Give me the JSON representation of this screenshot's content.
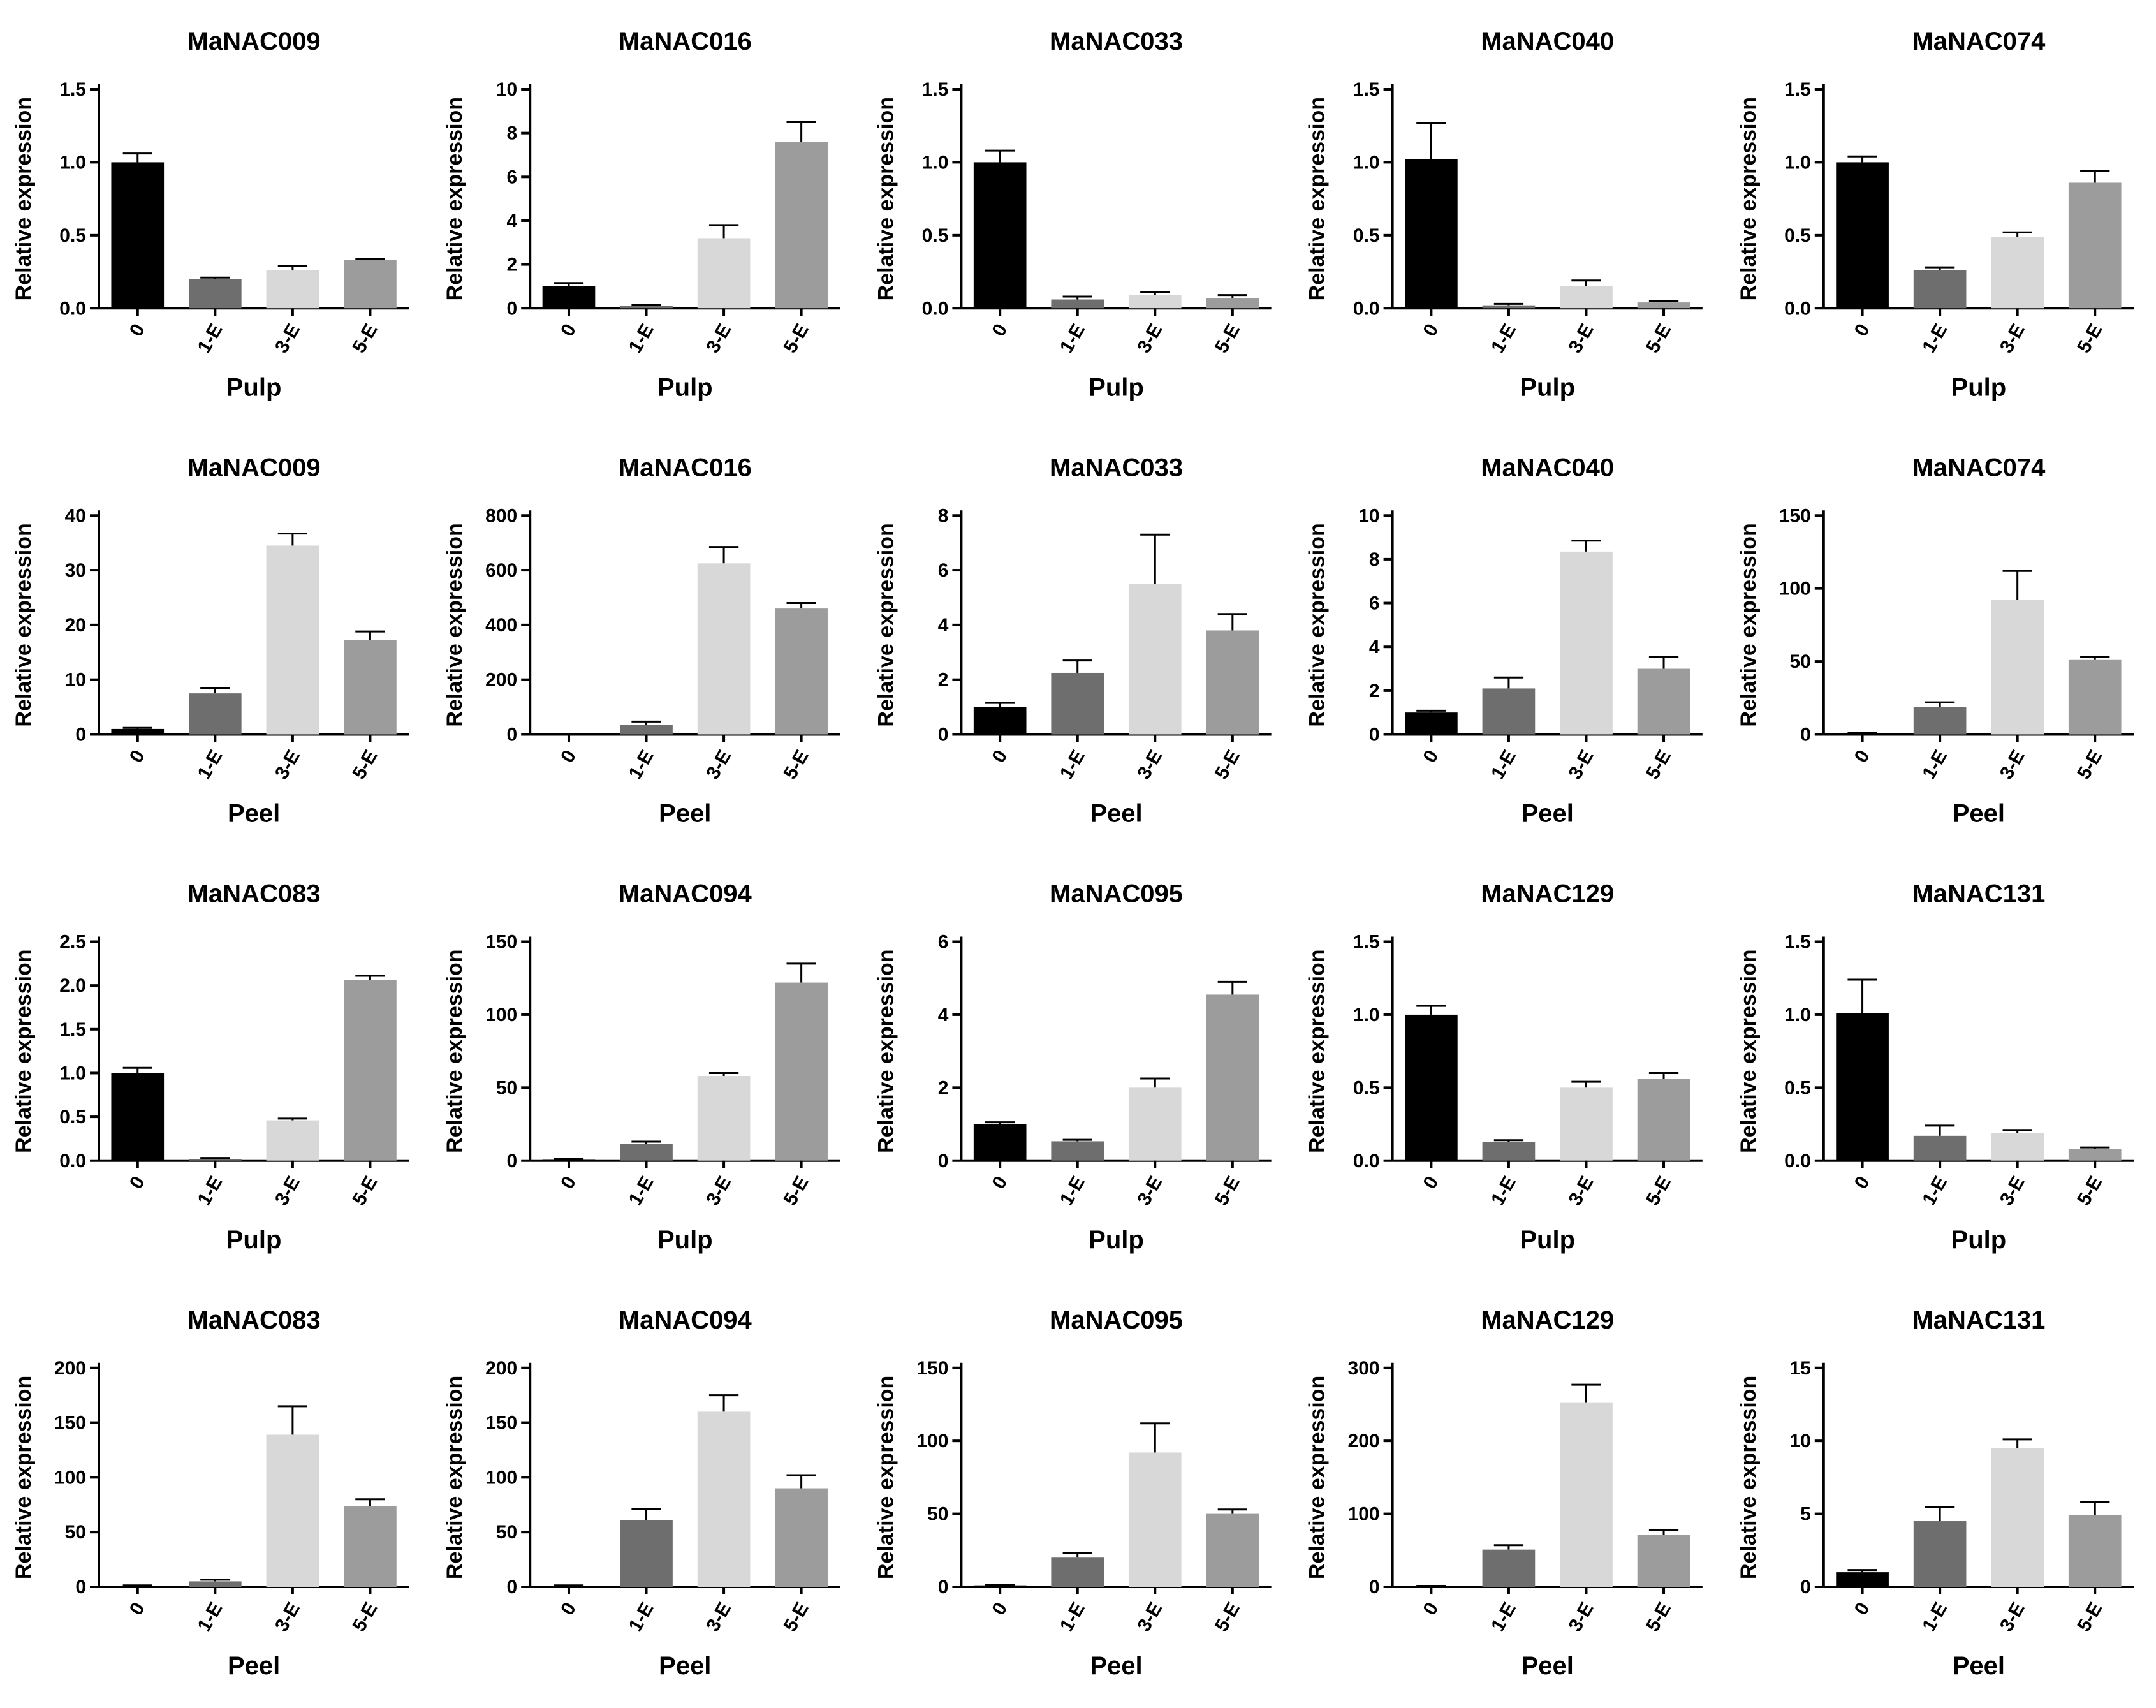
{
  "colors": {
    "0": "#000000",
    "1-E": "#6e6e6e",
    "3-E": "#d8d8d8",
    "5-E": "#9c9c9c"
  },
  "chart_data": [
    {
      "type": "bar",
      "title": "MaNAC009",
      "xlabel": "Pulp",
      "ylabel": "Relative expression",
      "categories": [
        "0",
        "1-E",
        "3-E",
        "5-E"
      ],
      "values": [
        1.0,
        0.2,
        0.26,
        0.33
      ],
      "errors": [
        0.06,
        0.01,
        0.03,
        0.01
      ],
      "ylim": [
        0,
        1.5
      ],
      "yticks": [
        "0.0",
        "0.5",
        "1.0",
        "1.5"
      ]
    },
    {
      "type": "bar",
      "title": "MaNAC016",
      "xlabel": "Pulp",
      "ylabel": "Relative expression",
      "categories": [
        "0",
        "1-E",
        "3-E",
        "5-E"
      ],
      "values": [
        1.0,
        0.1,
        3.2,
        7.6
      ],
      "errors": [
        0.15,
        0.05,
        0.6,
        0.9
      ],
      "ylim": [
        0,
        10
      ],
      "yticks": [
        "0",
        "2",
        "4",
        "6",
        "8",
        "10"
      ]
    },
    {
      "type": "bar",
      "title": "MaNAC033",
      "xlabel": "Pulp",
      "ylabel": "Relative expression",
      "categories": [
        "0",
        "1-E",
        "3-E",
        "5-E"
      ],
      "values": [
        1.0,
        0.06,
        0.09,
        0.07
      ],
      "errors": [
        0.08,
        0.02,
        0.02,
        0.02
      ],
      "ylim": [
        0,
        1.5
      ],
      "yticks": [
        "0.0",
        "0.5",
        "1.0",
        "1.5"
      ]
    },
    {
      "type": "bar",
      "title": "MaNAC040",
      "xlabel": "Pulp",
      "ylabel": "Relative expression",
      "categories": [
        "0",
        "1-E",
        "3-E",
        "5-E"
      ],
      "values": [
        1.02,
        0.02,
        0.15,
        0.04
      ],
      "errors": [
        0.25,
        0.01,
        0.04,
        0.01
      ],
      "ylim": [
        0,
        1.5
      ],
      "yticks": [
        "0.0",
        "0.5",
        "1.0",
        "1.5"
      ]
    },
    {
      "type": "bar",
      "title": "MaNAC074",
      "xlabel": "Pulp",
      "ylabel": "Relative expression",
      "categories": [
        "0",
        "1-E",
        "3-E",
        "5-E"
      ],
      "values": [
        1.0,
        0.26,
        0.49,
        0.86
      ],
      "errors": [
        0.04,
        0.02,
        0.03,
        0.08
      ],
      "ylim": [
        0,
        1.5
      ],
      "yticks": [
        "0.0",
        "0.5",
        "1.0",
        "1.5"
      ]
    },
    {
      "type": "bar",
      "title": "MaNAC009",
      "xlabel": "Peel",
      "ylabel": "Relative expression",
      "categories": [
        "0",
        "1-E",
        "3-E",
        "5-E"
      ],
      "values": [
        1.0,
        7.5,
        34.5,
        17.2
      ],
      "errors": [
        0.2,
        1.0,
        2.2,
        1.6
      ],
      "ylim": [
        0,
        40
      ],
      "yticks": [
        "0",
        "10",
        "20",
        "30",
        "40"
      ]
    },
    {
      "type": "bar",
      "title": "MaNAC016",
      "xlabel": "Peel",
      "ylabel": "Relative expression",
      "categories": [
        "0",
        "1-E",
        "3-E",
        "5-E"
      ],
      "values": [
        1.0,
        35,
        625,
        460
      ],
      "errors": [
        0.5,
        12,
        60,
        20
      ],
      "ylim": [
        0,
        800
      ],
      "yticks": [
        "0",
        "200",
        "400",
        "600",
        "800"
      ]
    },
    {
      "type": "bar",
      "title": "MaNAC033",
      "xlabel": "Peel",
      "ylabel": "Relative expression",
      "categories": [
        "0",
        "1-E",
        "3-E",
        "5-E"
      ],
      "values": [
        1.0,
        2.25,
        5.5,
        3.8
      ],
      "errors": [
        0.15,
        0.45,
        1.8,
        0.6
      ],
      "ylim": [
        0,
        8
      ],
      "yticks": [
        "0",
        "2",
        "4",
        "6",
        "8"
      ]
    },
    {
      "type": "bar",
      "title": "MaNAC040",
      "xlabel": "Peel",
      "ylabel": "Relative expression",
      "categories": [
        "0",
        "1-E",
        "3-E",
        "5-E"
      ],
      "values": [
        1.0,
        2.1,
        8.35,
        3.0
      ],
      "errors": [
        0.08,
        0.5,
        0.5,
        0.55
      ],
      "ylim": [
        0,
        10
      ],
      "yticks": [
        "0",
        "2",
        "4",
        "6",
        "8",
        "10"
      ]
    },
    {
      "type": "bar",
      "title": "MaNAC074",
      "xlabel": "Peel",
      "ylabel": "Relative expression",
      "categories": [
        "0",
        "1-E",
        "3-E",
        "5-E"
      ],
      "values": [
        1.0,
        19,
        92,
        51
      ],
      "errors": [
        0.3,
        3,
        20,
        2
      ],
      "ylim": [
        0,
        150
      ],
      "yticks": [
        "0",
        "50",
        "100",
        "150"
      ]
    },
    {
      "type": "bar",
      "title": "MaNAC083",
      "xlabel": "Pulp",
      "ylabel": "Relative expression",
      "categories": [
        "0",
        "1-E",
        "3-E",
        "5-E"
      ],
      "values": [
        1.0,
        0.02,
        0.46,
        2.06
      ],
      "errors": [
        0.06,
        0.01,
        0.02,
        0.05
      ],
      "ylim": [
        0,
        2.5
      ],
      "yticks": [
        "0.0",
        "0.5",
        "1.0",
        "1.5",
        "2.0",
        "2.5"
      ]
    },
    {
      "type": "bar",
      "title": "MaNAC094",
      "xlabel": "Pulp",
      "ylabel": "Relative expression",
      "categories": [
        "0",
        "1-E",
        "3-E",
        "5-E"
      ],
      "values": [
        1.0,
        11.5,
        58,
        122
      ],
      "errors": [
        0.3,
        1.5,
        2,
        13
      ],
      "ylim": [
        0,
        150
      ],
      "yticks": [
        "0",
        "50",
        "100",
        "150"
      ]
    },
    {
      "type": "bar",
      "title": "MaNAC095",
      "xlabel": "Pulp",
      "ylabel": "Relative expression",
      "categories": [
        "0",
        "1-E",
        "3-E",
        "5-E"
      ],
      "values": [
        1.0,
        0.53,
        2.0,
        4.55
      ],
      "errors": [
        0.05,
        0.04,
        0.25,
        0.35
      ],
      "ylim": [
        0,
        6
      ],
      "yticks": [
        "0",
        "2",
        "4",
        "6"
      ]
    },
    {
      "type": "bar",
      "title": "MaNAC129",
      "xlabel": "Pulp",
      "ylabel": "Relative expression",
      "categories": [
        "0",
        "1-E",
        "3-E",
        "5-E"
      ],
      "values": [
        1.0,
        0.13,
        0.5,
        0.56
      ],
      "errors": [
        0.06,
        0.01,
        0.04,
        0.04
      ],
      "ylim": [
        0,
        1.5
      ],
      "yticks": [
        "0.0",
        "0.5",
        "1.0",
        "1.5"
      ]
    },
    {
      "type": "bar",
      "title": "MaNAC131",
      "xlabel": "Pulp",
      "ylabel": "Relative expression",
      "categories": [
        "0",
        "1-E",
        "3-E",
        "5-E"
      ],
      "values": [
        1.01,
        0.17,
        0.19,
        0.08
      ],
      "errors": [
        0.23,
        0.07,
        0.02,
        0.01
      ],
      "ylim": [
        0,
        1.5
      ],
      "yticks": [
        "0.0",
        "0.5",
        "1.0",
        "1.5"
      ]
    },
    {
      "type": "bar",
      "title": "MaNAC083",
      "xlabel": "Peel",
      "ylabel": "Relative expression",
      "categories": [
        "0",
        "1-E",
        "3-E",
        "5-E"
      ],
      "values": [
        1.0,
        5,
        139,
        74
      ],
      "errors": [
        0.3,
        1.5,
        26,
        6
      ],
      "ylim": [
        0,
        200
      ],
      "yticks": [
        "0",
        "50",
        "100",
        "150",
        "200"
      ]
    },
    {
      "type": "bar",
      "title": "MaNAC094",
      "xlabel": "Peel",
      "ylabel": "Relative expression",
      "categories": [
        "0",
        "1-E",
        "3-E",
        "5-E"
      ],
      "values": [
        1.0,
        61,
        160,
        90
      ],
      "errors": [
        0.3,
        10,
        15,
        12
      ],
      "ylim": [
        0,
        200
      ],
      "yticks": [
        "0",
        "50",
        "100",
        "150",
        "200"
      ]
    },
    {
      "type": "bar",
      "title": "MaNAC095",
      "xlabel": "Peel",
      "ylabel": "Relative expression",
      "categories": [
        "0",
        "1-E",
        "3-E",
        "5-E"
      ],
      "values": [
        1.0,
        20,
        92,
        50
      ],
      "errors": [
        0.3,
        3,
        20,
        3
      ],
      "ylim": [
        0,
        150
      ],
      "yticks": [
        "0",
        "50",
        "100",
        "150"
      ]
    },
    {
      "type": "bar",
      "title": "MaNAC129",
      "xlabel": "Peel",
      "ylabel": "Relative expression",
      "categories": [
        "0",
        "1-E",
        "3-E",
        "5-E"
      ],
      "values": [
        1.0,
        51,
        252,
        71
      ],
      "errors": [
        0.3,
        6,
        25,
        7
      ],
      "ylim": [
        0,
        300
      ],
      "yticks": [
        "0",
        "100",
        "200",
        "300"
      ]
    },
    {
      "type": "bar",
      "title": "MaNAC131",
      "xlabel": "Peel",
      "ylabel": "Relative expression",
      "categories": [
        "0",
        "1-E",
        "3-E",
        "5-E"
      ],
      "values": [
        1.0,
        4.5,
        9.5,
        4.9
      ],
      "errors": [
        0.15,
        0.95,
        0.6,
        0.9
      ],
      "ylim": [
        0,
        15
      ],
      "yticks": [
        "0",
        "5",
        "10",
        "15"
      ]
    }
  ]
}
